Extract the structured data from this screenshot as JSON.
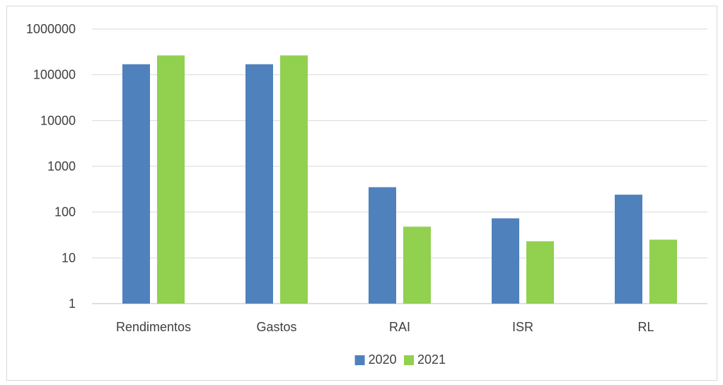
{
  "chart_data": {
    "type": "bar",
    "title": "",
    "xlabel": "",
    "ylabel": "",
    "scale": "log",
    "ylim": [
      1,
      1000000
    ],
    "y_ticks": [
      {
        "value": 1,
        "label": "1"
      },
      {
        "value": 10,
        "label": "10"
      },
      {
        "value": 100,
        "label": "100"
      },
      {
        "value": 1000,
        "label": "1000"
      },
      {
        "value": 10000,
        "label": "10000"
      },
      {
        "value": 100000,
        "label": "100000"
      },
      {
        "value": 1000000,
        "label": "1000000"
      }
    ],
    "categories": [
      "Rendimentos",
      "Gastos",
      "RAI",
      "ISR",
      "RL"
    ],
    "series": [
      {
        "name": "2020",
        "color": "#4f81bd",
        "values": [
          170000,
          170000,
          350,
          73,
          240
        ]
      },
      {
        "name": "2021",
        "color": "#92d050",
        "values": [
          265000,
          265000,
          48,
          23,
          25
        ]
      }
    ],
    "grid": true,
    "legend_position": "bottom"
  }
}
